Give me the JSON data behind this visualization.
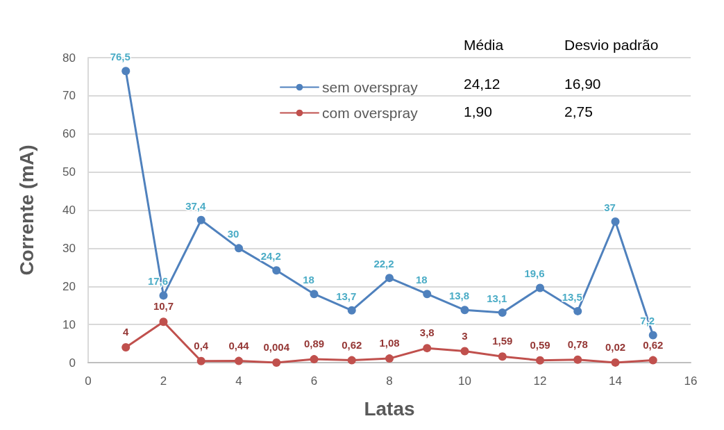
{
  "chart_data": {
    "type": "line",
    "xlabel": "Latas",
    "ylabel": "Corrente (mA)",
    "x": [
      1,
      2,
      3,
      4,
      5,
      6,
      7,
      8,
      9,
      10,
      11,
      12,
      13,
      14,
      15
    ],
    "series": [
      {
        "name": "sem overspray",
        "color": "#4f81bd",
        "values": [
          76.5,
          17.6,
          37.4,
          30,
          24.2,
          18,
          13.7,
          22.2,
          18,
          13.8,
          13.1,
          19.6,
          13.5,
          37,
          7.2
        ],
        "value_labels": [
          "76,5",
          "17,6",
          "37,4",
          "30",
          "24,2",
          "18",
          "13,7",
          "22,2",
          "18",
          "13,8",
          "13,1",
          "19,6",
          "13,5",
          "37",
          "7,2"
        ]
      },
      {
        "name": "com overspray",
        "color": "#c0504d",
        "values": [
          4,
          10.7,
          0.4,
          0.44,
          0.004,
          0.89,
          0.62,
          1.08,
          3.8,
          3,
          1.59,
          0.59,
          0.78,
          0.02,
          0.62
        ],
        "value_labels": [
          "4",
          "10,7",
          "0,4",
          "0,44",
          "0,004",
          "0,89",
          "0,62",
          "1,08",
          "3,8",
          "3",
          "1,59",
          "0,59",
          "0,78",
          "0,02",
          "0,62"
        ]
      }
    ],
    "xlim": [
      0,
      16
    ],
    "xticks": [
      0,
      2,
      4,
      6,
      8,
      10,
      12,
      14,
      16
    ],
    "ylim": [
      0,
      80
    ],
    "yticks": [
      0,
      10,
      20,
      30,
      40,
      50,
      60,
      70,
      80
    ],
    "grid": "y",
    "legend": "top",
    "marker": "circle",
    "line_style": "solid",
    "annotations": [
      "Média",
      "Desvio padrão",
      "24,12",
      "16,90",
      "1,90",
      "2,75"
    ]
  }
}
